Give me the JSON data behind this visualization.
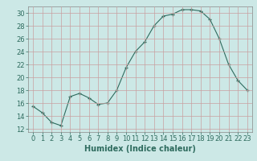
{
  "x": [
    0,
    1,
    2,
    3,
    4,
    5,
    6,
    7,
    8,
    9,
    10,
    11,
    12,
    13,
    14,
    15,
    16,
    17,
    18,
    19,
    20,
    21,
    22,
    23
  ],
  "y": [
    15.5,
    14.5,
    13.0,
    12.5,
    17.0,
    17.5,
    16.8,
    15.8,
    16.0,
    18.0,
    21.5,
    24.0,
    25.5,
    28.0,
    29.5,
    29.8,
    30.5,
    30.5,
    30.3,
    29.0,
    26.0,
    22.0,
    19.5,
    18.0
  ],
  "xlabel": "Humidex (Indice chaleur)",
  "xlim": [
    -0.5,
    23.5
  ],
  "ylim": [
    11.5,
    31.0
  ],
  "yticks": [
    12,
    14,
    16,
    18,
    20,
    22,
    24,
    26,
    28,
    30
  ],
  "xtick_labels": [
    "0",
    "1",
    "2",
    "3",
    "4",
    "5",
    "6",
    "7",
    "8",
    "9",
    "10",
    "11",
    "12",
    "13",
    "14",
    "15",
    "16",
    "17",
    "18",
    "19",
    "20",
    "21",
    "22",
    "23"
  ],
  "line_color": "#2e6b5e",
  "marker_color": "#2e6b5e",
  "bg_color": "#cce8e6",
  "grid_color": "#c8a0a0",
  "label_fontsize": 7,
  "tick_fontsize": 6
}
